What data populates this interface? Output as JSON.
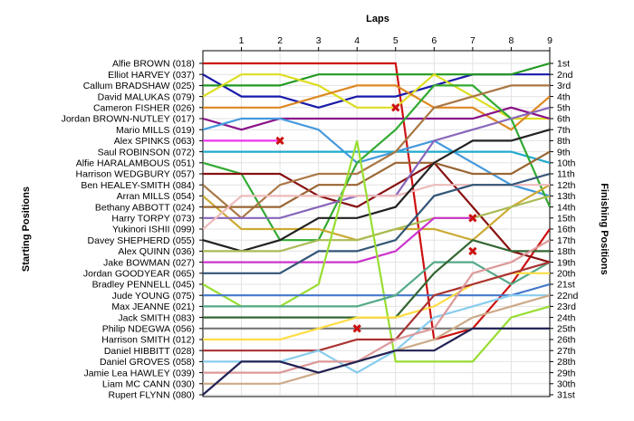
{
  "chart_data": {
    "type": "line",
    "title": "Laps",
    "xlabel": "Laps",
    "ylabel_left": "Starting Positions",
    "ylabel_right": "Finishing Positions",
    "x_ticks": [
      "1",
      "2",
      "3",
      "4",
      "5",
      "6",
      "7",
      "8",
      "9"
    ],
    "start_labels": [
      "Alfie BROWN (018)",
      "Elliot HARVEY (037)",
      "Callum BRADSHAW (025)",
      "David MALUKAS (079)",
      "Cameron FISHER (026)",
      "Jordan BROWN-NUTLEY (017)",
      "Mario MILLS (019)",
      "Alex SPINKS (063)",
      "Saul ROBINSON (072)",
      "Alfie HARALAMBOUS (051)",
      "Harrison WEDGBURY (057)",
      "Ben HEALEY-SMITH (084)",
      "Arran MILLS (054)",
      "Bethany ABBOTT (024)",
      "Harry TORPY (073)",
      "Yukinori ISHII (099)",
      "Davey SHEPHERD (055)",
      "Alex QUINN (036)",
      "Jake BOWMAN (027)",
      "Jordan GOODYEAR (065)",
      "Bradley PENNELL (045)",
      "Jude YOUNG (075)",
      "Max JEANNE (021)",
      "Jack SMITH (083)",
      "Philip NDEGWA (056)",
      "Harrison SMITH (012)",
      "Daniel HIBBITT (028)",
      "Daniel GROVES (058)",
      "Jamie Lea HAWLEY (039)",
      "Liam MC CANN (030)",
      "Rupert FLYNN (080)"
    ],
    "finish_labels": [
      "1st",
      "2nd",
      "3rd",
      "4th",
      "5th",
      "6th",
      "7th",
      "8th",
      "9th",
      "10th",
      "11th",
      "12th",
      "13th",
      "14th",
      "15th",
      "16th",
      "17th",
      "18th",
      "19th",
      "20th",
      "21st",
      "22nd",
      "23rd",
      "24th",
      "25th",
      "26th",
      "27th",
      "28th",
      "29th",
      "30th",
      "31st"
    ],
    "series": [
      {
        "color": "#cc1111",
        "positions": [
          1,
          1,
          1,
          1,
          1,
          1,
          26,
          25,
          21,
          16
        ]
      },
      {
        "color": "#1a1aaa",
        "positions": [
          2,
          4,
          4,
          5,
          4,
          4,
          3,
          2,
          2,
          2
        ]
      },
      {
        "color": "#229922",
        "positions": [
          3,
          3,
          3,
          2,
          2,
          2,
          2,
          2,
          2,
          1
        ]
      },
      {
        "color": "#dddd22",
        "positions": [
          4,
          2,
          2,
          3,
          5,
          5,
          2,
          4,
          6,
          6
        ]
      },
      {
        "color": "#dd8822",
        "positions": [
          5,
          5,
          5,
          4,
          3,
          3,
          5,
          5,
          7,
          4
        ]
      },
      {
        "color": "#881188",
        "positions": [
          6,
          7,
          6,
          6,
          6,
          6,
          6,
          6,
          5,
          6
        ]
      },
      {
        "color": "#4499dd",
        "positions": [
          7,
          6,
          6,
          7,
          10,
          9,
          8,
          10,
          12,
          13
        ]
      },
      {
        "color": "#ee33ee",
        "positions": [
          8,
          8,
          8,
          0,
          0,
          0,
          0,
          0,
          0,
          0
        ]
      },
      {
        "color": "#22aacc",
        "positions": [
          9,
          9,
          9,
          9,
          9,
          9,
          9,
          9,
          9,
          10
        ]
      },
      {
        "color": "#33aa33",
        "positions": [
          10,
          11,
          17,
          17,
          10,
          7,
          3,
          3,
          6,
          14
        ]
      },
      {
        "color": "#881111",
        "positions": [
          11,
          11,
          11,
          13,
          14,
          12,
          10,
          14,
          18,
          19
        ]
      },
      {
        "color": "#aa7744",
        "positions": [
          12,
          15,
          12,
          11,
          11,
          9,
          5,
          4,
          3,
          3
        ]
      },
      {
        "color": "#ccaa33",
        "positions": [
          13,
          16,
          16,
          16,
          17,
          16,
          16,
          17,
          14,
          12
        ]
      },
      {
        "color": "#996633",
        "positions": [
          14,
          14,
          14,
          12,
          12,
          10,
          10,
          11,
          11,
          9
        ]
      },
      {
        "color": "#8866bb",
        "positions": [
          15,
          15,
          15,
          14,
          13,
          13,
          8,
          7,
          6,
          5
        ]
      },
      {
        "color": "#eebbbb",
        "positions": [
          16,
          13,
          13,
          13,
          13,
          13,
          12,
          12,
          12,
          12
        ]
      },
      {
        "color": "#222222",
        "positions": [
          17,
          18,
          17,
          15,
          15,
          14,
          10,
          8,
          8,
          7
        ]
      },
      {
        "color": "#aabb55",
        "positions": [
          18,
          18,
          18,
          17,
          17,
          16,
          15,
          15,
          14,
          13
        ]
      },
      {
        "color": "#cc33cc",
        "positions": [
          19,
          19,
          19,
          19,
          19,
          18,
          15,
          15,
          0,
          0
        ]
      },
      {
        "color": "#335577",
        "positions": [
          20,
          20,
          20,
          18,
          18,
          17,
          13,
          12,
          12,
          11
        ]
      },
      {
        "color": "#99dd33",
        "positions": [
          21,
          23,
          23,
          21,
          8,
          28,
          28,
          28,
          24,
          23
        ]
      },
      {
        "color": "#4477cc",
        "positions": [
          22,
          22,
          22,
          22,
          22,
          22,
          22,
          22,
          22,
          21
        ]
      },
      {
        "color": "#55aa88",
        "positions": [
          23,
          23,
          23,
          23,
          23,
          22,
          19,
          19,
          21,
          19
        ]
      },
      {
        "color": "#336633",
        "positions": [
          24,
          24,
          24,
          24,
          24,
          24,
          20,
          17,
          18,
          18
        ]
      },
      {
        "color": "#777777",
        "positions": [
          25,
          25,
          25,
          25,
          25,
          25,
          25,
          25,
          25,
          25
        ]
      },
      {
        "color": "#ffdd44",
        "positions": [
          26,
          26,
          26,
          25,
          24,
          24,
          23,
          21,
          20,
          20
        ]
      },
      {
        "color": "#aa3333",
        "positions": [
          27,
          27,
          27,
          27,
          26,
          26,
          22,
          21,
          20,
          19
        ]
      },
      {
        "color": "#88ccee",
        "positions": [
          28,
          28,
          28,
          27,
          29,
          27,
          24,
          23,
          22,
          22
        ]
      },
      {
        "color": "#dd9999",
        "positions": [
          29,
          29,
          29,
          28,
          28,
          26,
          25,
          20,
          19,
          17
        ]
      },
      {
        "color": "#ccaa88",
        "positions": [
          30,
          30,
          30,
          29,
          28,
          27,
          26,
          24,
          23,
          22
        ]
      },
      {
        "color": "#222255",
        "positions": [
          31,
          28,
          28,
          29,
          28,
          27,
          27,
          25,
          25,
          25
        ]
      }
    ],
    "markers": [
      {
        "series": 7,
        "lap": 2,
        "position": 8
      },
      {
        "series": 3,
        "lap": 5,
        "position": 5
      },
      {
        "series": 14,
        "lap": 7,
        "position": 15
      },
      {
        "series": 17,
        "lap": 7,
        "position": 18
      },
      {
        "series": 24,
        "lap": 4,
        "position": 25
      }
    ],
    "grid": true
  }
}
